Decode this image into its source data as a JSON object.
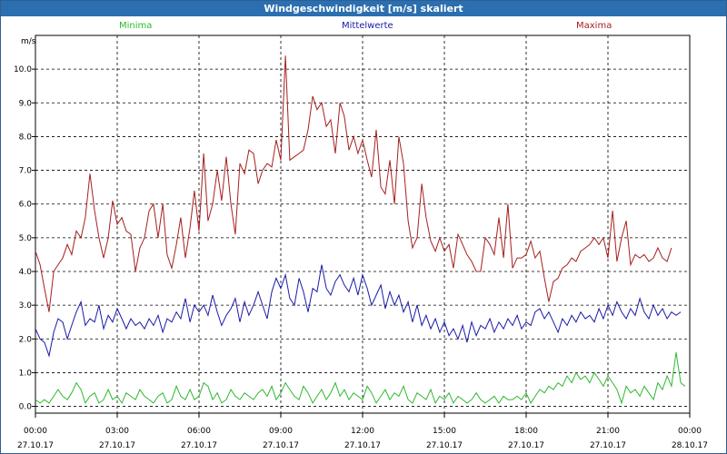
{
  "window": {
    "title": "Windgeschwindigkeit [m/s] skaliert"
  },
  "chart_data": {
    "type": "line",
    "title": "Windgeschwindigkeit [m/s] skaliert",
    "ylabel": "m/s",
    "ylim": [
      -0.2,
      11.0
    ],
    "xlim": [
      0,
      24
    ],
    "grid": true,
    "legend_position": "top",
    "y_ticks": [
      "0.0",
      "1.0",
      "2.0",
      "3.0",
      "4.0",
      "5.0",
      "6.0",
      "7.0",
      "8.0",
      "9.0",
      "10.0"
    ],
    "x_ticks": [
      {
        "time": "00:00",
        "date": "27.10.17"
      },
      {
        "time": "03:00",
        "date": "27.10.17"
      },
      {
        "time": "06:00",
        "date": "27.10.17"
      },
      {
        "time": "09:00",
        "date": "27.10.17"
      },
      {
        "time": "12:00",
        "date": "27.10.17"
      },
      {
        "time": "15:00",
        "date": "27.10.17"
      },
      {
        "time": "18:00",
        "date": "27.10.17"
      },
      {
        "time": "21:00",
        "date": "27.10.17"
      },
      {
        "time": "00:00",
        "date": "28.10.17"
      }
    ],
    "x_hours": [
      0,
      0.17,
      0.33,
      0.5,
      0.67,
      0.83,
      1,
      1.17,
      1.33,
      1.5,
      1.67,
      1.83,
      2,
      2.17,
      2.33,
      2.5,
      2.67,
      2.83,
      3,
      3.17,
      3.33,
      3.5,
      3.67,
      3.83,
      4,
      4.17,
      4.33,
      4.5,
      4.67,
      4.83,
      5,
      5.17,
      5.33,
      5.5,
      5.67,
      5.83,
      6,
      6.17,
      6.33,
      6.5,
      6.67,
      6.83,
      7,
      7.17,
      7.33,
      7.5,
      7.67,
      7.83,
      8,
      8.17,
      8.33,
      8.5,
      8.67,
      8.83,
      9,
      9.17,
      9.33,
      9.5,
      9.67,
      9.83,
      10,
      10.17,
      10.33,
      10.5,
      10.67,
      10.83,
      11,
      11.17,
      11.33,
      11.5,
      11.67,
      11.83,
      12,
      12.17,
      12.33,
      12.5,
      12.67,
      12.83,
      13,
      13.17,
      13.33,
      13.5,
      13.67,
      13.83,
      14,
      14.17,
      14.33,
      14.5,
      14.67,
      14.83,
      15,
      15.17,
      15.33,
      15.5,
      15.67,
      15.83,
      16,
      16.17,
      16.33,
      16.5,
      16.67,
      16.83,
      17,
      17.17,
      17.33,
      17.5,
      17.67,
      17.83,
      18,
      18.17,
      18.33,
      18.5,
      18.67,
      18.83,
      19,
      19.17,
      19.33,
      19.5,
      19.67,
      19.83,
      20,
      20.17,
      20.33,
      20.5,
      20.67,
      20.83,
      21,
      21.17,
      21.33,
      21.5,
      21.67,
      21.83,
      22,
      22.17,
      22.33,
      22.5,
      22.67,
      22.83,
      23,
      23.17,
      23.33,
      23.5,
      23.67,
      23.83,
      24
    ],
    "series": [
      {
        "name": "Minima",
        "color": "#2eb82e",
        "values": [
          0.2,
          0.1,
          0.2,
          0.1,
          0.3,
          0.5,
          0.3,
          0.2,
          0.4,
          0.7,
          0.5,
          0.1,
          0.3,
          0.4,
          0.1,
          0.2,
          0.5,
          0.2,
          0.3,
          0.1,
          0.4,
          0.3,
          0.2,
          0.5,
          0.3,
          0.2,
          0.1,
          0.3,
          0.4,
          0.1,
          0.2,
          0.6,
          0.3,
          0.2,
          0.5,
          0.2,
          0.3,
          0.7,
          0.6,
          0.2,
          0.4,
          0.1,
          0.2,
          0.5,
          0.3,
          0.2,
          0.4,
          0.3,
          0.2,
          0.4,
          0.5,
          0.3,
          0.6,
          0.2,
          0.4,
          0.7,
          0.5,
          0.3,
          0.2,
          0.6,
          0.4,
          0.1,
          0.3,
          0.5,
          0.2,
          0.4,
          0.7,
          0.3,
          0.5,
          0.2,
          0.4,
          0.3,
          0.2,
          0.6,
          0.4,
          0.1,
          0.3,
          0.5,
          0.2,
          0.4,
          0.3,
          0.6,
          0.2,
          0.1,
          0.4,
          0.3,
          0.2,
          0.5,
          0.1,
          0.3,
          0.2,
          0.4,
          0.1,
          0.3,
          0.2,
          0.1,
          0.2,
          0.4,
          0.2,
          0.1,
          0.2,
          0.3,
          0.1,
          0.3,
          0.2,
          0.2,
          0.3,
          0.2,
          0.4,
          0.1,
          0.3,
          0.5,
          0.4,
          0.6,
          0.5,
          0.7,
          0.6,
          0.9,
          0.7,
          1.0,
          0.8,
          0.9,
          0.7,
          1.0,
          0.8,
          0.6,
          0.9,
          0.7,
          0.5,
          0.1,
          0.6,
          0.4,
          0.5,
          0.3,
          0.6,
          0.4,
          0.2,
          0.7,
          0.5,
          0.9,
          0.6,
          1.6,
          0.7,
          0.6
        ]
      },
      {
        "name": "Mittelwerte",
        "color": "#1a1aa6",
        "values": [
          2.3,
          2.0,
          1.9,
          1.5,
          2.2,
          2.6,
          2.5,
          2.0,
          2.4,
          2.8,
          3.1,
          2.4,
          2.6,
          2.5,
          3.0,
          2.3,
          2.7,
          2.5,
          2.9,
          2.6,
          2.3,
          2.6,
          2.4,
          2.5,
          2.3,
          2.6,
          2.4,
          2.7,
          2.2,
          2.6,
          2.5,
          2.8,
          2.6,
          3.2,
          2.5,
          3.0,
          2.8,
          3.0,
          2.7,
          3.3,
          2.8,
          2.4,
          2.7,
          2.9,
          3.2,
          2.5,
          3.1,
          2.7,
          3.0,
          3.4,
          3.0,
          2.6,
          3.4,
          3.8,
          3.5,
          3.9,
          3.2,
          3.0,
          3.8,
          3.4,
          2.8,
          3.5,
          3.4,
          4.2,
          3.5,
          3.3,
          3.7,
          3.9,
          3.6,
          3.4,
          3.8,
          3.3,
          3.9,
          3.5,
          3.0,
          3.3,
          3.6,
          2.9,
          3.4,
          3.0,
          3.3,
          2.8,
          3.1,
          2.5,
          3.0,
          2.4,
          2.7,
          2.3,
          2.6,
          2.2,
          2.5,
          2.1,
          2.3,
          2.0,
          2.4,
          1.9,
          2.5,
          2.1,
          2.4,
          2.3,
          2.6,
          2.2,
          2.5,
          2.3,
          2.6,
          2.4,
          2.7,
          2.3,
          2.5,
          2.4,
          2.8,
          2.9,
          2.6,
          2.8,
          2.5,
          2.2,
          2.6,
          2.4,
          2.7,
          2.5,
          2.8,
          2.6,
          2.7,
          2.5,
          2.9,
          2.6,
          3.0,
          2.7,
          3.1,
          2.8,
          2.6,
          2.9,
          2.7,
          3.2,
          2.8,
          2.6,
          3.0,
          2.7,
          2.9,
          2.6,
          2.8,
          2.7,
          2.8
        ]
      },
      {
        "name": "Maxima",
        "color": "#a61f1f",
        "values": [
          4.6,
          4.2,
          3.5,
          2.8,
          4.0,
          4.2,
          4.4,
          4.8,
          4.5,
          5.2,
          5.0,
          5.6,
          6.9,
          5.8,
          5.0,
          4.4,
          5.0,
          6.1,
          5.4,
          5.6,
          5.2,
          5.1,
          4.0,
          4.7,
          5.0,
          5.8,
          6.0,
          5.0,
          6.0,
          4.5,
          4.1,
          4.8,
          5.6,
          4.4,
          5.3,
          6.4,
          5.2,
          7.5,
          5.5,
          6.0,
          7.0,
          6.1,
          7.4,
          6.0,
          5.1,
          7.2,
          6.9,
          7.6,
          7.5,
          6.6,
          7.0,
          7.2,
          7.1,
          7.9,
          7.3,
          10.4,
          7.3,
          7.4,
          7.5,
          7.6,
          8.2,
          9.2,
          8.8,
          9.0,
          8.3,
          8.5,
          7.5,
          9.0,
          8.6,
          7.6,
          8.0,
          7.5,
          7.9,
          7.3,
          6.8,
          8.2,
          6.5,
          6.3,
          7.3,
          6.0,
          8.0,
          7.2,
          5.5,
          4.7,
          5.0,
          6.6,
          5.6,
          4.9,
          4.6,
          5.0,
          4.6,
          4.8,
          4.1,
          5.1,
          4.8,
          4.5,
          4.3,
          4.0,
          4.0,
          5.0,
          4.8,
          4.5,
          5.6,
          4.4,
          6.0,
          4.1,
          4.4,
          4.4,
          4.5,
          4.9,
          4.4,
          4.6,
          3.8,
          3.1,
          3.7,
          3.8,
          4.1,
          4.2,
          4.4,
          4.3,
          4.6,
          4.7,
          4.8,
          5.0,
          4.8,
          5.0,
          4.4,
          5.8,
          4.3,
          5.0,
          5.5,
          4.2,
          4.5,
          4.4,
          4.5,
          4.3,
          4.4,
          4.7,
          4.4,
          4.3,
          4.7
        ]
      }
    ]
  }
}
